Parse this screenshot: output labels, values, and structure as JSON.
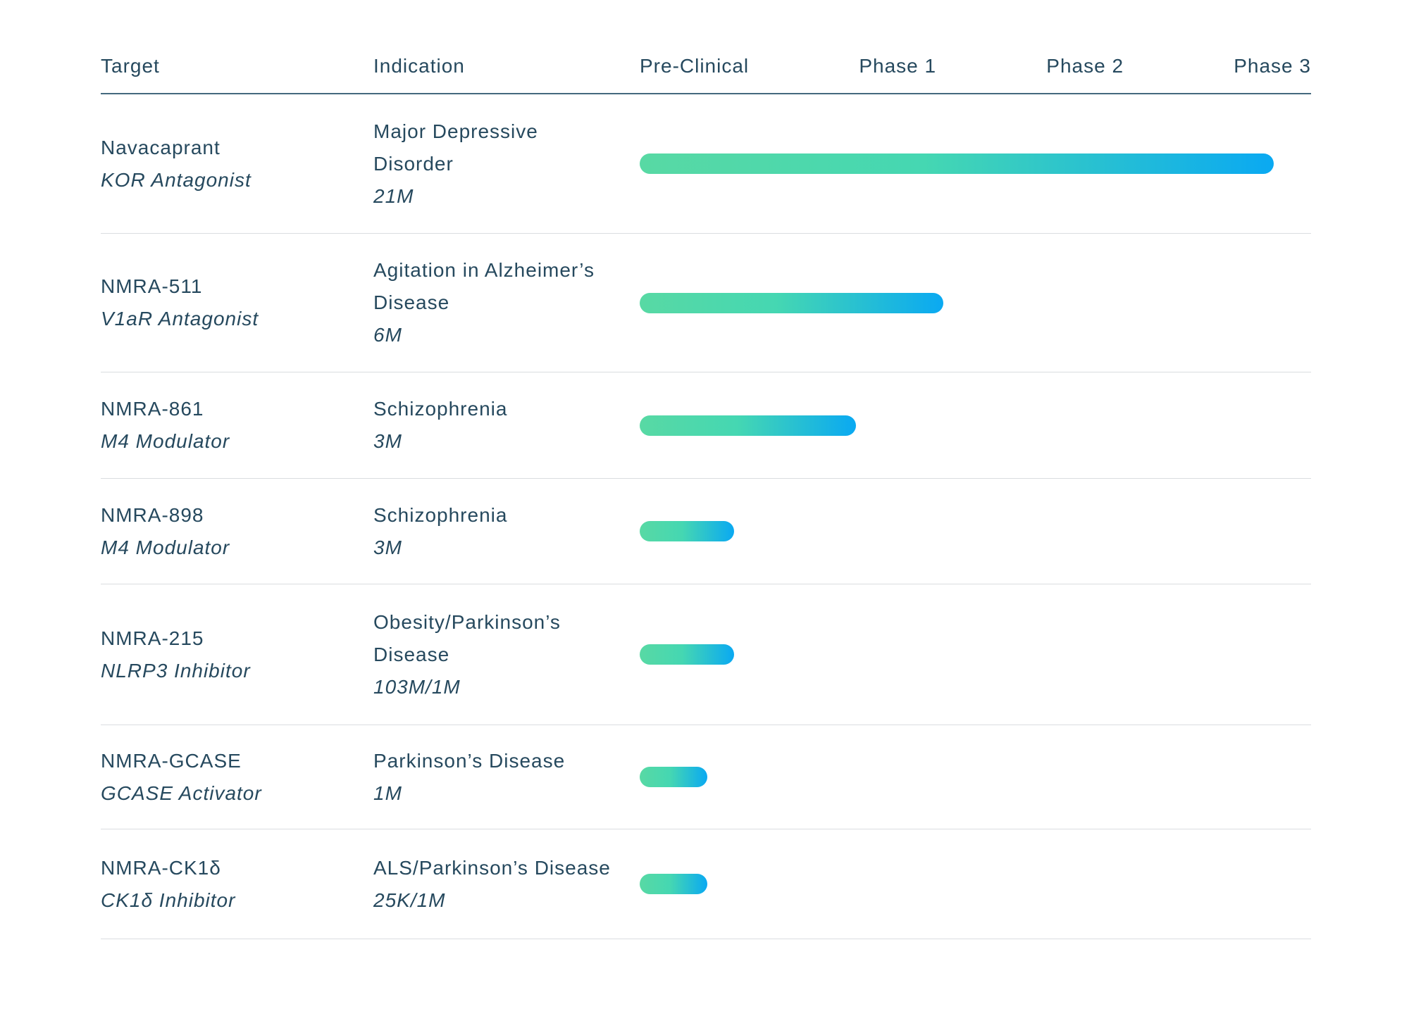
{
  "header": {
    "target": "Target",
    "indication": "Indication",
    "phases": [
      "Pre-Clinical",
      "Phase 1",
      "Phase 2",
      "Phase 3"
    ]
  },
  "rows": [
    {
      "target": "Navacaprant",
      "mechanism": "KOR Antagonist",
      "indication": "Major Depressive\nDisorder",
      "population": "21M",
      "bar_pct": 94.4,
      "stage": "Phase 3"
    },
    {
      "target": "NMRA-511",
      "mechanism": "V1aR Antagonist",
      "indication": "Agitation in Alzheimer’s\nDisease",
      "population": "6M",
      "bar_pct": 45.2,
      "stage": "Phase 1"
    },
    {
      "target": "NMRA-861",
      "mechanism": "M4 Modulator",
      "indication": "Schizophrenia",
      "population": "3M",
      "bar_pct": 32.2,
      "stage": "Phase 1"
    },
    {
      "target": "NMRA-898",
      "mechanism": "M4 Modulator",
      "indication": "Schizophrenia",
      "population": "3M",
      "bar_pct": 14.1,
      "stage": "Pre-Clinical"
    },
    {
      "target": "NMRA-215",
      "mechanism": "NLRP3 Inhibitor",
      "indication": "Obesity/Parkinson’s\nDisease",
      "population": "103M/1M",
      "bar_pct": 14.1,
      "stage": "Pre-Clinical"
    },
    {
      "target": "NMRA-GCASE",
      "mechanism": "GCASE Activator",
      "indication": "Parkinson’s Disease",
      "population": "1M",
      "bar_pct": 10.1,
      "stage": "Pre-Clinical"
    },
    {
      "target": "NMRA-CK1δ",
      "mechanism": "CK1δ Inhibitor",
      "indication": "ALS/Parkinson’s Disease",
      "population": "25K/1M",
      "bar_pct": 10.1,
      "stage": "Pre-Clinical"
    }
  ],
  "colors": {
    "text": "#26495e",
    "header_rule": "#44697e",
    "row_divider": "#dadde0",
    "bar_gradient_start": "#58d9a4",
    "bar_gradient_end": "#0aa9f2"
  },
  "chart_data": {
    "type": "gantt",
    "title": "Drug development pipeline",
    "phase_axis": [
      "Pre-Clinical",
      "Phase 1",
      "Phase 2",
      "Phase 3"
    ],
    "track_range_pct": [
      0,
      100
    ],
    "phase_boundaries_pct": [
      0,
      25,
      50,
      75,
      100
    ],
    "categories": [
      "Navacaprant",
      "NMRA-511",
      "NMRA-861",
      "NMRA-898",
      "NMRA-215",
      "NMRA-GCASE",
      "NMRA-CK1δ"
    ],
    "series": [
      {
        "name": "progress_pct_of_full_track",
        "values": [
          94.4,
          45.2,
          32.2,
          14.1,
          14.1,
          10.1,
          10.1
        ]
      },
      {
        "name": "current_stage",
        "values": [
          "Phase 3",
          "Phase 1",
          "Phase 1",
          "Pre-Clinical",
          "Pre-Clinical",
          "Pre-Clinical",
          "Pre-Clinical"
        ]
      }
    ],
    "legend": "none",
    "grid": "off"
  }
}
